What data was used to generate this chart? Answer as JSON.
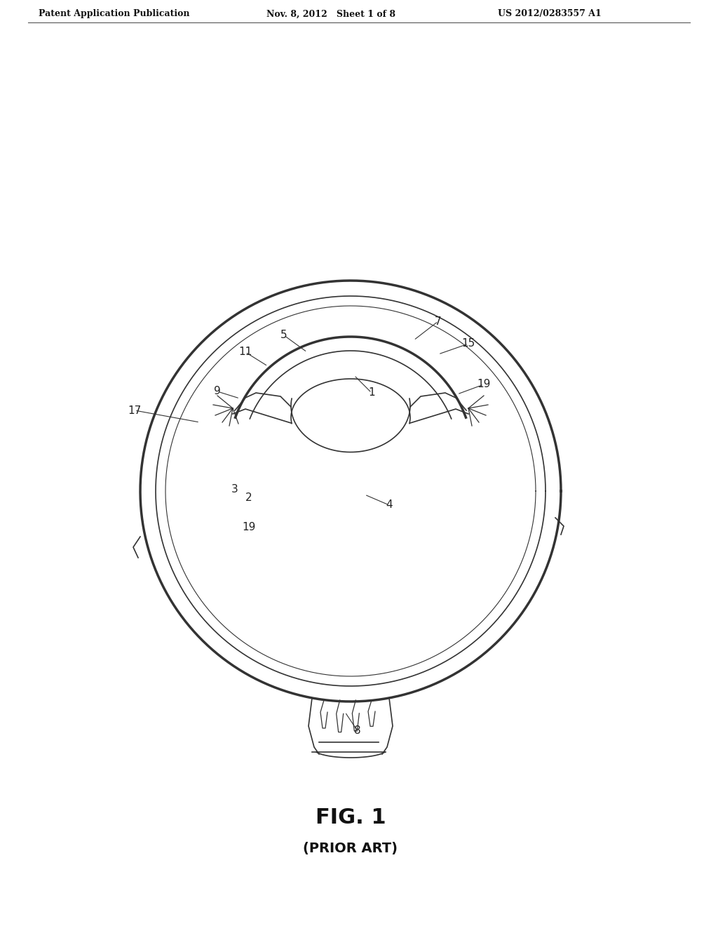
{
  "title": "FIG. 1",
  "subtitle": "(PRIOR ART)",
  "header_left": "Patent Application Publication",
  "header_mid": "Nov. 8, 2012   Sheet 1 of 8",
  "header_right": "US 2012/0283557 A1",
  "bg_color": "#ffffff",
  "line_color": "#333333",
  "label_color": "#222222"
}
